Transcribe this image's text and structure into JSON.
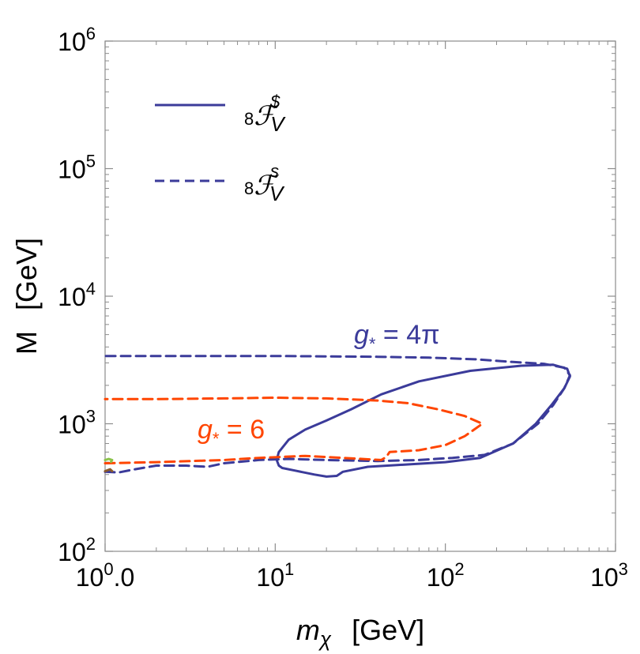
{
  "chart_data": {
    "type": "line",
    "title": "",
    "x_scale": "log",
    "y_scale": "log",
    "xlim": [
      1,
      1000
    ],
    "ylim": [
      100,
      1000000
    ],
    "x_ticks": [
      {
        "value": 1,
        "base": "10",
        "exp": "0",
        "suffix": ".0"
      },
      {
        "value": 10,
        "base": "10",
        "exp": "1",
        "suffix": ""
      },
      {
        "value": 100,
        "base": "10",
        "exp": "2",
        "suffix": ""
      },
      {
        "value": 1000,
        "base": "10",
        "exp": "3",
        "suffix": ""
      }
    ],
    "y_ticks": [
      {
        "value": 100,
        "base": "10",
        "exp": "2"
      },
      {
        "value": 1000,
        "base": "10",
        "exp": "3"
      },
      {
        "value": 10000,
        "base": "10",
        "exp": "4"
      },
      {
        "value": 100000,
        "base": "10",
        "exp": "5"
      },
      {
        "value": 1000000,
        "base": "10",
        "exp": "6"
      }
    ],
    "xlabel": {
      "main": "m",
      "sub": "χ",
      "unit": "[GeV]"
    },
    "ylabel": {
      "main": "M",
      "unit": "[GeV]"
    },
    "legend": {
      "position": "top-left",
      "entries": [
        {
          "pre": "8",
          "main": "ℱ",
          "sup": "$",
          "sub": "V",
          "style": "solid",
          "color": "#3b3b9a"
        },
        {
          "pre": "8",
          "main": "ℱ",
          "sup": "s",
          "sub": "V",
          "style": "dashed",
          "color": "#3b3b9a"
        }
      ]
    },
    "annotations": [
      {
        "label": "g",
        "sub": "*",
        "rest": " = 4π",
        "color": "#3b3b9a",
        "at": [
          32,
          4300
        ]
      },
      {
        "label": "g",
        "sub": "*",
        "rest": " = 6",
        "color": "#ff4500",
        "at": [
          3.3,
          900
        ]
      }
    ],
    "series": [
      {
        "name": "g* = 4π, solid",
        "style": "solid",
        "color": "#3b3b9a",
        "closed": true,
        "points": [
          [
            10.2,
            520
          ],
          [
            10.5,
            470
          ],
          [
            11,
            450
          ],
          [
            13,
            430
          ],
          [
            17,
            400
          ],
          [
            20,
            385
          ],
          [
            23,
            390
          ],
          [
            25,
            420
          ],
          [
            35,
            460
          ],
          [
            60,
            480
          ],
          [
            100,
            500
          ],
          [
            160,
            540
          ],
          [
            250,
            700
          ],
          [
            340,
            1000
          ],
          [
            420,
            1400
          ],
          [
            500,
            1900
          ],
          [
            540,
            2350
          ],
          [
            520,
            2700
          ],
          [
            430,
            2900
          ],
          [
            280,
            2850
          ],
          [
            140,
            2600
          ],
          [
            70,
            2150
          ],
          [
            42,
            1700
          ],
          [
            28,
            1300
          ],
          [
            20,
            1060
          ],
          [
            15,
            900
          ],
          [
            12,
            750
          ],
          [
            10.5,
            600
          ],
          [
            10.2,
            520
          ]
        ]
      },
      {
        "name": "g* = 4π, dashed",
        "style": "dashed",
        "color": "#3b3b9a",
        "closed": false,
        "points": [
          [
            1,
            420
          ],
          [
            1.2,
            415
          ],
          [
            1.5,
            440
          ],
          [
            2,
            470
          ],
          [
            3,
            470
          ],
          [
            4,
            460
          ],
          [
            5,
            490
          ],
          [
            8,
            520
          ],
          [
            12,
            530
          ],
          [
            20,
            520
          ],
          [
            40,
            510
          ],
          [
            70,
            520
          ],
          [
            110,
            540
          ],
          [
            170,
            570
          ],
          [
            250,
            700
          ],
          [
            350,
            1000
          ],
          [
            430,
            1400
          ],
          [
            500,
            1900
          ],
          [
            540,
            2400
          ],
          [
            500,
            2750
          ],
          [
            380,
            2950
          ],
          [
            250,
            3050
          ],
          [
            150,
            3200
          ],
          [
            80,
            3300
          ],
          [
            40,
            3350
          ],
          [
            10,
            3400
          ],
          [
            4,
            3400
          ],
          [
            1,
            3400
          ]
        ]
      },
      {
        "name": "g* = 6, dashed",
        "style": "dashed",
        "color": "#ff4500",
        "closed": false,
        "points": [
          [
            1,
            490
          ],
          [
            2,
            500
          ],
          [
            5,
            520
          ],
          [
            8,
            540
          ],
          [
            15,
            560
          ],
          [
            25,
            540
          ],
          [
            42,
            520
          ],
          [
            45,
            550
          ],
          [
            47,
            600
          ],
          [
            70,
            620
          ],
          [
            100,
            680
          ],
          [
            130,
            800
          ],
          [
            165,
            1000
          ],
          [
            130,
            1150
          ],
          [
            90,
            1300
          ],
          [
            60,
            1450
          ],
          [
            40,
            1520
          ],
          [
            20,
            1580
          ],
          [
            10,
            1600
          ],
          [
            5,
            1580
          ],
          [
            2,
            1560
          ],
          [
            1,
            1560
          ]
        ]
      },
      {
        "name": "green",
        "style": "dashed",
        "color": "#8bc34a",
        "closed": false,
        "points": [
          [
            1,
            520
          ],
          [
            1.05,
            530
          ],
          [
            1.1,
            520
          ],
          [
            1.08,
            500
          ]
        ]
      },
      {
        "name": "brown",
        "style": "solid",
        "color": "#8b5a2b",
        "closed": false,
        "points": [
          [
            1,
            425
          ],
          [
            1.07,
            440
          ],
          [
            1.1,
            425
          ]
        ]
      }
    ]
  }
}
